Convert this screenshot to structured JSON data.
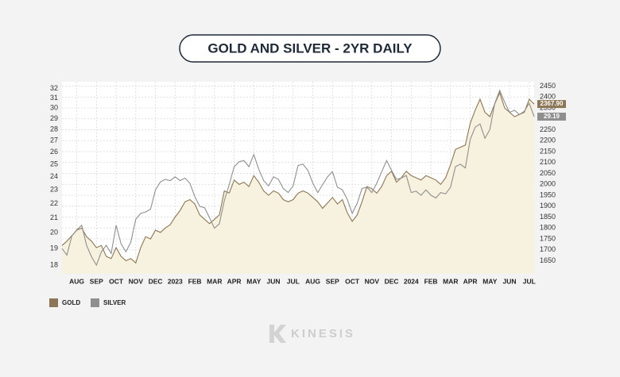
{
  "chart_data": {
    "type": "line",
    "title": "GOLD AND SILVER - 2YR DAILY",
    "brand": "KINESIS",
    "categories": [
      null,
      null,
      null,
      "AUG",
      null,
      null,
      null,
      "SEP",
      null,
      null,
      null,
      "OCT",
      null,
      null,
      null,
      "NOV",
      null,
      null,
      null,
      "DEC",
      null,
      null,
      null,
      "2023",
      null,
      null,
      null,
      "FEB",
      null,
      null,
      null,
      "MAR",
      null,
      null,
      null,
      "APR",
      null,
      null,
      null,
      "MAY",
      null,
      null,
      null,
      "JUN",
      null,
      null,
      null,
      "JUL",
      null,
      null,
      null,
      "AUG",
      null,
      null,
      null,
      "SEP",
      null,
      null,
      null,
      "OCT",
      null,
      null,
      null,
      "NOV",
      null,
      null,
      null,
      "DEC",
      null,
      null,
      null,
      "2024",
      null,
      null,
      null,
      "FEB",
      null,
      null,
      null,
      "MAR",
      null,
      null,
      null,
      "APR",
      null,
      null,
      null,
      "MAY",
      null,
      null,
      null,
      "JUN",
      null,
      null,
      null,
      "JUL",
      null
    ],
    "series": [
      {
        "name": "GOLD",
        "color": "#8c7655",
        "axis": "y2",
        "fill": "#f6f2df",
        "end_label": "2367.90",
        "values": [
          1720,
          1740,
          1765,
          1790,
          1800,
          1760,
          1740,
          1710,
          1720,
          1670,
          1660,
          1710,
          1670,
          1650,
          1660,
          1640,
          1710,
          1760,
          1750,
          1790,
          1780,
          1800,
          1815,
          1850,
          1880,
          1920,
          1930,
          1910,
          1860,
          1840,
          1820,
          1840,
          1860,
          1970,
          1960,
          2020,
          2000,
          2010,
          1990,
          2040,
          2010,
          1970,
          1950,
          1970,
          1960,
          1930,
          1920,
          1930,
          1960,
          1970,
          1960,
          1940,
          1920,
          1890,
          1915,
          1940,
          1910,
          1930,
          1870,
          1830,
          1860,
          1920,
          1990,
          1980,
          1960,
          1990,
          2040,
          2060,
          2010,
          2030,
          2060,
          2040,
          2030,
          2020,
          2040,
          2030,
          2020,
          2000,
          2030,
          2090,
          2160,
          2170,
          2180,
          2280,
          2340,
          2390,
          2330,
          2310,
          2370,
          2420,
          2350,
          2330,
          2310,
          2320,
          2330,
          2390,
          2367.9
        ]
      },
      {
        "name": "SILVER",
        "color": "#8f8f8f",
        "axis": "y",
        "end_label": "29.19",
        "values": [
          19.0,
          18.6,
          19.8,
          20.2,
          20.5,
          19.2,
          18.5,
          18.0,
          18.8,
          19.2,
          18.7,
          20.5,
          19.3,
          18.8,
          19.4,
          20.9,
          21.3,
          21.4,
          21.6,
          23.0,
          23.6,
          23.8,
          23.7,
          24.0,
          23.7,
          23.9,
          23.5,
          22.5,
          21.8,
          21.7,
          21.0,
          20.3,
          20.6,
          22.2,
          23.4,
          24.8,
          25.2,
          25.3,
          24.8,
          25.8,
          24.6,
          23.7,
          23.3,
          24.0,
          23.8,
          23.1,
          22.8,
          23.3,
          24.9,
          25.0,
          24.5,
          23.5,
          22.8,
          23.4,
          24.0,
          24.4,
          23.2,
          23.0,
          22.3,
          21.3,
          22.0,
          23.1,
          23.2,
          22.8,
          23.5,
          24.4,
          25.3,
          24.5,
          23.8,
          23.9,
          24.1,
          22.8,
          22.9,
          22.6,
          23.0,
          22.6,
          22.4,
          22.8,
          22.7,
          23.2,
          24.8,
          25.0,
          24.7,
          27.1,
          28.2,
          28.5,
          27.2,
          28.0,
          30.5,
          31.8,
          30.6,
          29.6,
          29.8,
          29.4,
          29.7,
          30.5,
          29.19
        ]
      }
    ],
    "y_scale": "log",
    "ylim": [
      17.5,
      32.7
    ],
    "yticks": [
      18,
      19,
      20,
      21,
      22,
      23,
      24,
      25,
      26,
      27,
      28,
      29,
      30,
      31,
      32
    ],
    "y2lim": [
      1590,
      2470
    ],
    "y2ticks": [
      1650,
      1700,
      1750,
      1800,
      1850,
      1900,
      1950,
      2000,
      2050,
      2100,
      2150,
      2200,
      2250,
      2300,
      2350,
      2400,
      2450
    ],
    "grid": true,
    "legend": "bottom-left"
  }
}
